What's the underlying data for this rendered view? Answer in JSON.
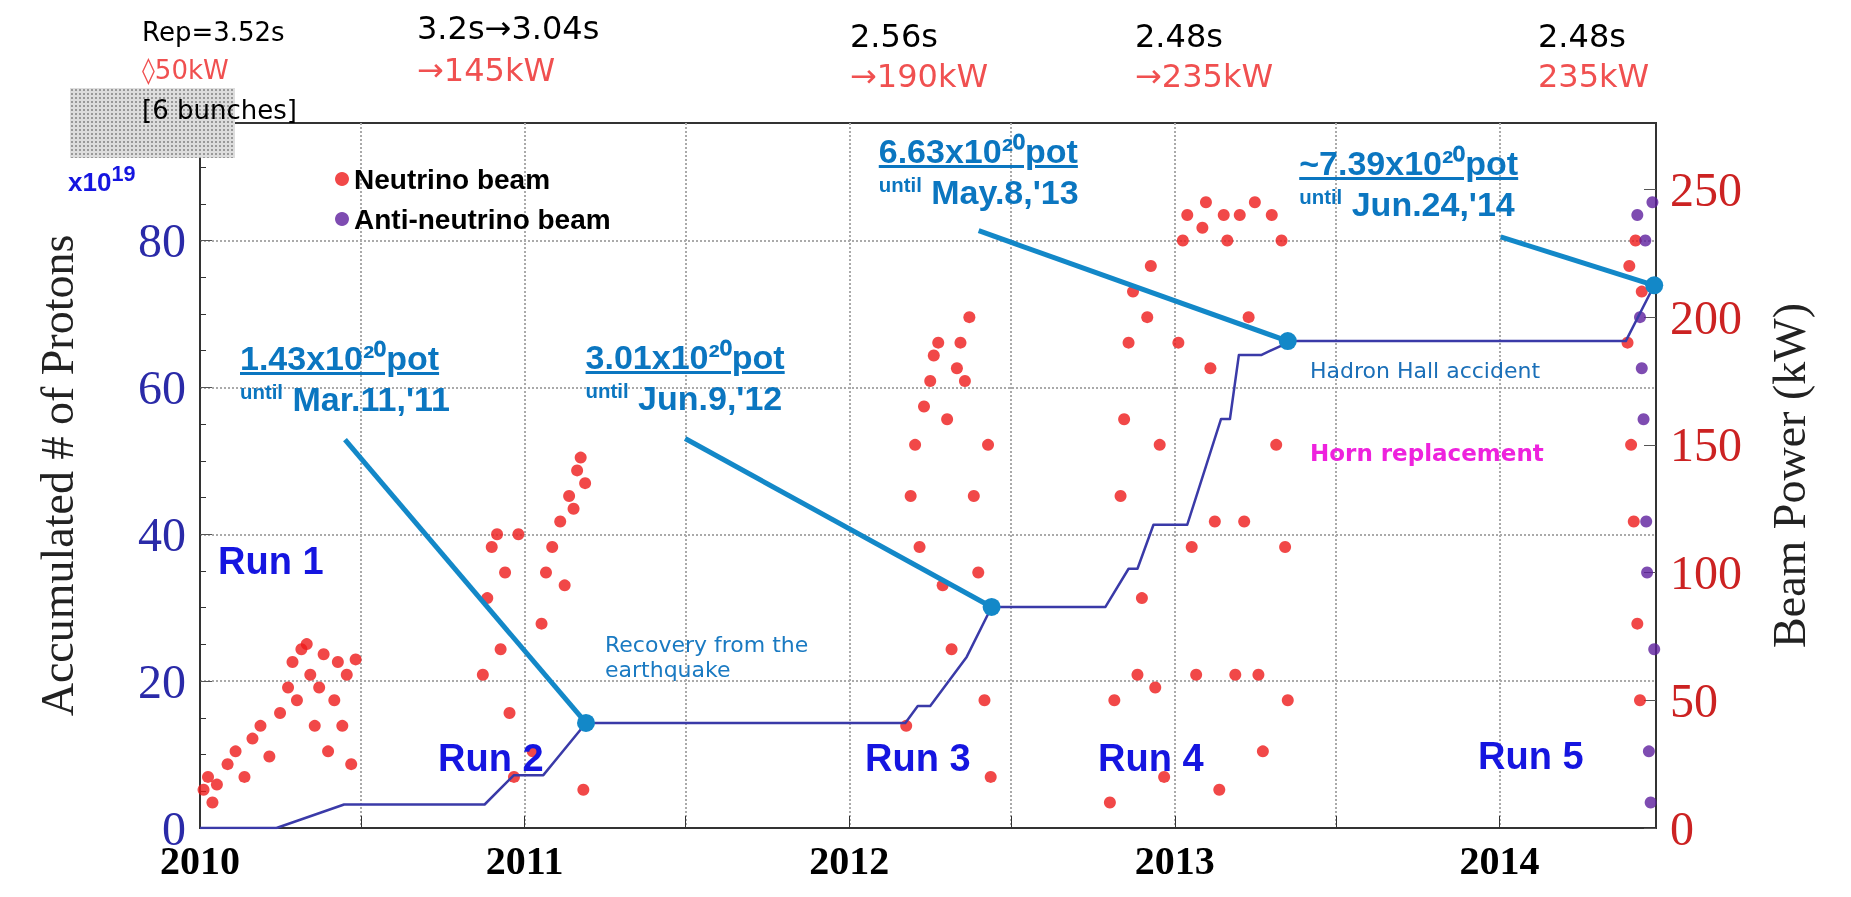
{
  "chart_data": {
    "type": "scatter",
    "ylabel": "Accumulated # of Protons",
    "y2label": "Beam Power (kW)",
    "xlim": [
      "2010-01-01",
      "2014-06-26"
    ],
    "xticks": [
      "2010",
      {
        "value": "2010-07-01",
        "label": null
      },
      "2011",
      {
        "value": "2011-07-01",
        "label": null
      },
      "2012",
      {
        "value": "2012-07-01",
        "label": null
      },
      "2013",
      {
        "value": "2013-07-01",
        "label": null
      },
      "2014"
    ],
    "ylim": [
      0,
      96
    ],
    "yticks": [
      0,
      20,
      40,
      60,
      80
    ],
    "y2lim": [
      0,
      276
    ],
    "y2ticks": [
      0,
      50,
      100,
      150,
      200,
      250
    ],
    "grid": true,
    "legend": "top left",
    "series": [
      {
        "name": "Neutrino beam",
        "type": "scatter",
        "axis": "y2",
        "marker": "circle",
        "color": "#ee1a1a",
        "x": [
          "2010-01-05",
          "2010-01-10",
          "2010-01-15",
          "2010-01-20",
          "2010-02-01",
          "2010-02-10",
          "2010-02-20",
          "2010-03-01",
          "2010-03-10",
          "2010-03-20",
          "2010-04-01",
          "2010-04-10",
          "2010-04-15",
          "2010-04-20",
          "2010-04-25",
          "2010-05-01",
          "2010-05-05",
          "2010-05-10",
          "2010-05-15",
          "2010-05-20",
          "2010-05-25",
          "2010-06-01",
          "2010-06-05",
          "2010-06-10",
          "2010-06-15",
          "2010-06-20",
          "2010-06-25",
          "2010-11-15",
          "2010-11-20",
          "2010-11-25",
          "2010-12-01",
          "2010-12-05",
          "2010-12-10",
          "2010-12-15",
          "2010-12-20",
          "2010-12-25",
          "2011-01-10",
          "2011-01-20",
          "2011-01-25",
          "2011-02-01",
          "2011-02-10",
          "2011-02-15",
          "2011-02-20",
          "2011-02-25",
          "2011-03-01",
          "2011-03-05",
          "2011-03-08",
          "2011-03-10",
          "2012-03-05",
          "2012-03-10",
          "2012-03-15",
          "2012-03-20",
          "2012-03-25",
          "2012-04-01",
          "2012-04-05",
          "2012-04-10",
          "2012-04-15",
          "2012-04-20",
          "2012-04-25",
          "2012-05-01",
          "2012-05-05",
          "2012-05-10",
          "2012-05-15",
          "2012-05-20",
          "2012-05-25",
          "2012-06-01",
          "2012-06-05",
          "2012-06-08",
          "2012-10-20",
          "2012-10-25",
          "2012-11-01",
          "2012-11-05",
          "2012-11-10",
          "2012-11-15",
          "2012-11-20",
          "2012-11-25",
          "2012-12-01",
          "2012-12-05",
          "2012-12-10",
          "2012-12-15",
          "2012-12-20",
          "2013-01-05",
          "2013-01-10",
          "2013-01-15",
          "2013-01-20",
          "2013-01-25",
          "2013-02-01",
          "2013-02-05",
          "2013-02-10",
          "2013-02-15",
          "2013-02-20",
          "2013-02-25",
          "2013-03-01",
          "2013-03-10",
          "2013-03-15",
          "2013-03-20",
          "2013-03-25",
          "2013-04-01",
          "2013-04-05",
          "2013-04-10",
          "2013-04-20",
          "2013-04-25",
          "2013-05-01",
          "2013-05-05",
          "2013-05-08",
          "2014-05-25",
          "2014-05-27",
          "2014-05-29",
          "2014-06-01",
          "2014-06-03",
          "2014-06-05",
          "2014-06-08",
          "2014-06-10"
        ],
        "values": [
          15,
          20,
          10,
          17,
          25,
          30,
          20,
          35,
          40,
          28,
          45,
          55,
          65,
          50,
          70,
          72,
          60,
          40,
          55,
          68,
          30,
          50,
          65,
          40,
          60,
          25,
          66,
          60,
          90,
          110,
          115,
          70,
          100,
          45,
          20,
          115,
          30,
          80,
          100,
          110,
          120,
          95,
          130,
          125,
          140,
          145,
          15,
          135,
          40,
          130,
          150,
          110,
          165,
          175,
          185,
          190,
          95,
          160,
          70,
          180,
          190,
          175,
          200,
          130,
          100,
          50,
          150,
          20,
          10,
          50,
          130,
          160,
          190,
          210,
          60,
          90,
          200,
          220,
          55,
          150,
          20,
          190,
          230,
          240,
          110,
          60,
          235,
          245,
          180,
          120,
          15,
          240,
          230,
          60,
          240,
          120,
          200,
          245,
          60,
          30,
          240,
          150,
          230,
          110,
          50,
          190,
          220,
          150,
          120,
          230,
          80,
          50,
          210
        ]
      },
      {
        "name": "Anti-neutrino beam",
        "type": "scatter",
        "axis": "y2",
        "marker": "circle",
        "color": "#5e1f9e",
        "x": [
          "2014-06-05",
          "2014-06-08",
          "2014-06-10",
          "2014-06-12",
          "2014-06-14",
          "2014-06-15",
          "2014-06-16",
          "2014-06-18",
          "2014-06-20",
          "2014-06-22",
          "2014-06-24"
        ],
        "values": [
          240,
          200,
          180,
          160,
          230,
          120,
          100,
          30,
          10,
          245,
          70
        ]
      },
      {
        "type": "line",
        "marker": "none",
        "color": "#3a3aa8",
        "x": [
          "2010-01-01",
          "2010-03-28",
          "2010-06-12",
          "2010-11-17",
          "2010-12-20",
          "2011-01-22",
          "2011-03-11",
          "2012-03-04",
          "2012-03-18",
          "2012-04-01",
          "2012-05-12",
          "2012-06-09",
          "2012-10-15",
          "2012-11-10",
          "2012-11-20",
          "2012-12-08",
          "2013-01-15",
          "2013-02-22",
          "2013-03-04",
          "2013-03-14",
          "2013-04-08",
          "2013-05-01",
          "2013-05-08",
          "2014-05-23",
          "2014-06-24"
        ],
        "values": [
          0,
          0,
          3.2,
          3.2,
          7.2,
          7.2,
          14.3,
          14.3,
          16.6,
          16.6,
          23.3,
          30.1,
          30.1,
          35.3,
          35.3,
          41.3,
          41.3,
          55.7,
          55.7,
          64.4,
          64.4,
          65.7,
          66.3,
          66.3,
          73.9
        ]
      }
    ],
    "annotations": [
      "Rep=3.52s",
      "◊50kW",
      "[6 bunches]",
      "3.2s→3.04s",
      "→145kW",
      "2.56s",
      "→190kW",
      "2.48s",
      "→235kW",
      "2.48s",
      "235kW",
      "x10$^{19}$",
      "Run 1",
      "Run 2",
      "Run 3",
      "Run 4",
      "Run 5",
      "Recovery from the earthquake",
      "Hadron Hall accident",
      "Horn replacement",
      {
        "text": "1.43x10²⁰pot $^{until}$ Mar.11,'11",
        "x": "2011-03-11",
        "y": 14.3
      },
      {
        "text": "3.01x10²⁰pot $^{until}$ Jun.9,'12",
        "x": "2012-06-09",
        "y": 30.1
      },
      {
        "text": "6.63x10²⁰pot $^{until}$ May.8,'13",
        "x": "2013-05-08",
        "y": 66.3
      },
      {
        "text": "~7.39x10²⁰pot $^{until}$ Jun.24,'14",
        "x": "2014-06-24",
        "y": 73.9
      }
    ]
  }
}
